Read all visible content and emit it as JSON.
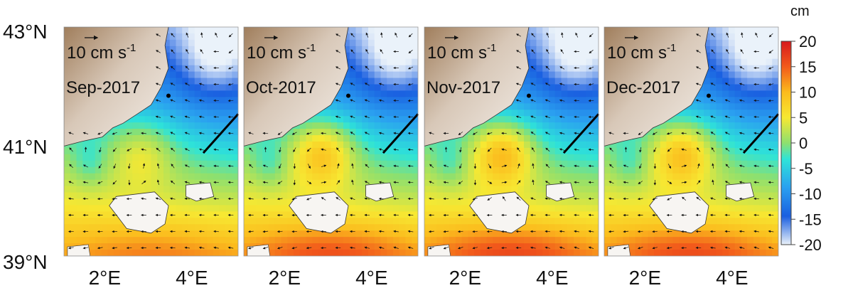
{
  "figure": {
    "y_axis_labels": [
      "43°N",
      "41°N",
      "39°N"
    ],
    "x_axis_labels": [
      "2°E",
      "4°E"
    ],
    "y_axis_values": [
      43,
      41,
      39
    ],
    "x_axis_values": [
      2,
      4
    ],
    "lon_range": [
      1.0,
      5.0
    ],
    "lat_range": [
      39.0,
      43.0
    ]
  },
  "panels": [
    {
      "month_label": "Sep-2017",
      "scale_label": "10 cm s",
      "scale_exp": "-1",
      "intensity": 0.55
    },
    {
      "month_label": "Oct-2017",
      "scale_label": "10 cm s",
      "scale_exp": "-1",
      "intensity": 1.0
    },
    {
      "month_label": "Nov-2017",
      "scale_label": "10 cm s",
      "scale_exp": "-1",
      "intensity": 1.1
    },
    {
      "month_label": "Dec-2017",
      "scale_label": "10 cm s",
      "scale_exp": "-1",
      "intensity": 1.05
    }
  ],
  "colorbar": {
    "unit": "cm",
    "tick_labels": [
      "20",
      "15",
      "10",
      "5",
      "0",
      "-5",
      "-10",
      "-15",
      "-20"
    ],
    "range": [
      -20,
      20
    ],
    "colors": [
      "#d7191c",
      "#f25a1b",
      "#fbbb1d",
      "#f7e832",
      "#8ee06e",
      "#2ee4d8",
      "#2aa0f0",
      "#1a5fe0",
      "#eaf2fa"
    ]
  },
  "map_colors": {
    "land_light": "#f3eeea",
    "land_dark": "#8a6a4a",
    "coast": "#333333",
    "vectors": "#111111",
    "transect": "#000000"
  }
}
